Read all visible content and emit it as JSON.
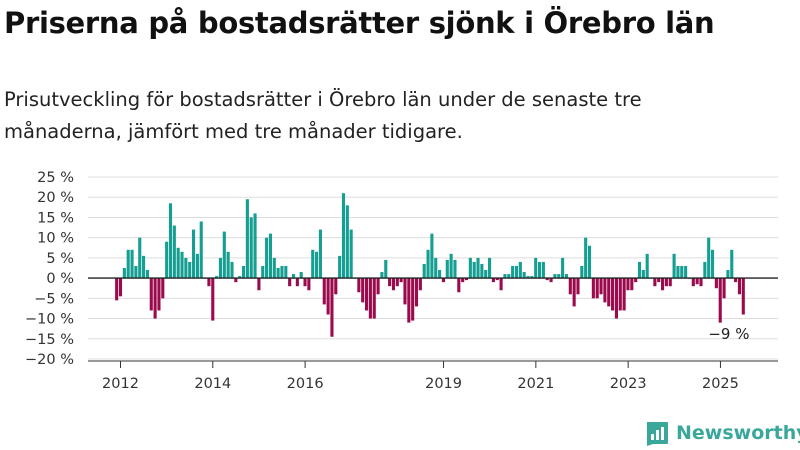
{
  "title": "Priserna på bostadsrätter sjönk i Örebro län",
  "subtitle": "Prisutveckling för bostadsrätter i Örebro län under de senaste tre månaderna, jämfört med tre månader tidigare.",
  "logo_text": "Newsworthy",
  "colors": {
    "positive": "#159e92",
    "negative": "#9b0a4c",
    "zero_line": "#222222",
    "grid": "#dddddd",
    "brand": "#3aa79b"
  },
  "chart_data": {
    "type": "bar",
    "title": "",
    "xlabel": "",
    "ylabel": "",
    "ylim": [
      -20,
      25
    ],
    "grid": true,
    "y_ticks": [
      "25 %",
      "20 %",
      "15 %",
      "10 %",
      "5 %",
      "0 %",
      "−5 %",
      "−10 %",
      "−15 %",
      "−20 %"
    ],
    "y_tick_values": [
      25,
      20,
      15,
      10,
      5,
      0,
      -5,
      -10,
      -15,
      -20
    ],
    "x_tick_labels": [
      "2012",
      "2014",
      "2016",
      "2019",
      "2021",
      "2023",
      "2025"
    ],
    "x_tick_values": [
      2012,
      2014,
      2016,
      2019,
      2021,
      2023,
      2025
    ],
    "x_start": 2011.917,
    "x_step": 0.0833,
    "values": [
      -5.5,
      -4.5,
      2.5,
      7,
      7,
      3,
      10,
      5.5,
      2,
      -8,
      -10,
      -8,
      -5,
      9,
      18.5,
      13,
      7.5,
      6.5,
      5,
      4,
      12,
      6,
      14,
      0,
      -2,
      -10.5,
      0.5,
      5,
      11.5,
      6.5,
      4,
      -1,
      0.5,
      3,
      19.5,
      15,
      16,
      -3,
      3,
      10,
      11,
      5,
      2.5,
      3,
      3,
      -2,
      1,
      -2,
      1.5,
      -2,
      -3,
      7,
      6.5,
      12,
      -6.5,
      -9,
      -14.5,
      -4,
      5.5,
      21,
      18,
      12,
      0,
      -3.5,
      -6,
      -8,
      -10,
      -10,
      -4,
      1.5,
      4.5,
      -2,
      -3,
      -2,
      -1,
      -6.5,
      -11,
      -10.5,
      -7,
      -3,
      3.5,
      7,
      11,
      5,
      2,
      -1,
      4.5,
      6,
      4.5,
      -3.5,
      -1,
      -0.5,
      5,
      4,
      5,
      3.5,
      2,
      5,
      -1,
      -0.5,
      -3,
      1,
      1,
      3,
      3,
      4,
      1.5,
      0.5,
      0.5,
      5,
      4,
      4,
      -0.5,
      -1,
      1,
      1,
      5,
      1,
      -4,
      -7,
      -4,
      3,
      10,
      8,
      -5,
      -5,
      -4,
      -6,
      -7,
      -8,
      -10,
      -8,
      -8,
      -3,
      -3,
      -1,
      4,
      2,
      6,
      0,
      -2,
      -1,
      -3,
      -2,
      -2,
      6,
      3,
      3,
      3,
      0,
      -2,
      -1.5,
      -2,
      4,
      10,
      7,
      -2.5,
      -11,
      -5,
      2,
      7,
      -1,
      -4,
      -9
    ],
    "annotations": [
      {
        "text": "−9 %",
        "x_index": 159
      }
    ]
  }
}
